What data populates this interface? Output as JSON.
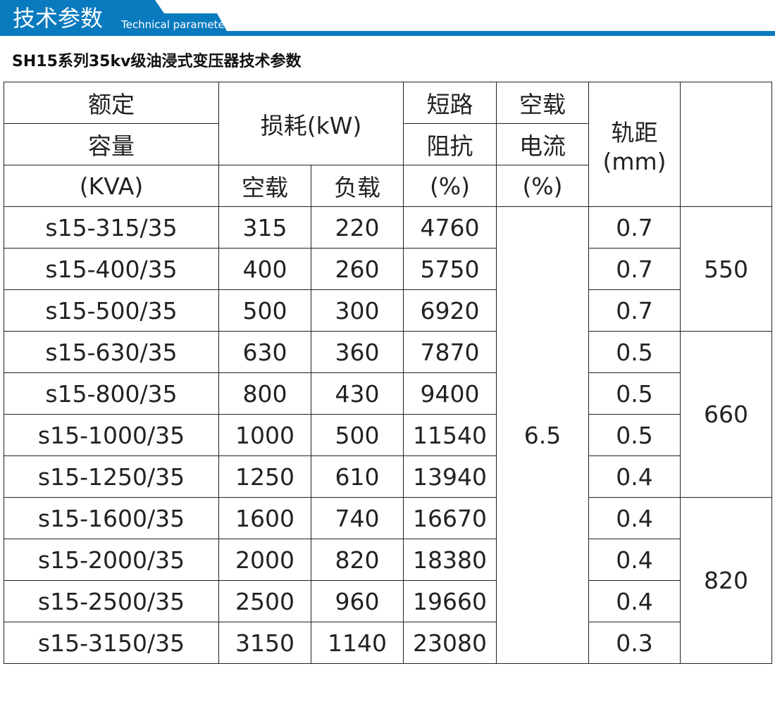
{
  "banner": {
    "title": "技术参数",
    "subtitle": "Technical parameter",
    "color": "#0a7abf"
  },
  "heading": "SH15系列35kv级油浸式变压器技术参数",
  "table": {
    "headers": {
      "capacity": [
        "额定",
        "容量",
        "(KVA)"
      ],
      "loss": "损耗(kW)",
      "loss_noload": "空载",
      "loss_load": "负载",
      "impedance": [
        "短路",
        "阻抗",
        "(%)"
      ],
      "noload_current": [
        "空载",
        "电流",
        "(%)"
      ],
      "gauge": [
        "轨距",
        "(mm)"
      ],
      "last": ""
    },
    "rows": [
      [
        "s15-315/35",
        "315",
        "220",
        "4760",
        "0.7"
      ],
      [
        "s15-400/35",
        "400",
        "260",
        "5750",
        "0.7"
      ],
      [
        "s15-500/35",
        "500",
        "300",
        "6920",
        "0.7"
      ],
      [
        "s15-630/35",
        "630",
        "360",
        "7870",
        "0.5"
      ],
      [
        "s15-800/35",
        "800",
        "430",
        "9400",
        "0.5"
      ],
      [
        "s15-1000/35",
        "1000",
        "500",
        "11540",
        "0.5"
      ],
      [
        "s15-1250/35",
        "1250",
        "610",
        "13940",
        "0.4"
      ],
      [
        "s15-1600/35",
        "1600",
        "740",
        "16670",
        "0.4"
      ],
      [
        "s15-2000/35",
        "2000",
        "820",
        "18380",
        "0.4"
      ],
      [
        "s15-2500/35",
        "2500",
        "960",
        "19660",
        "0.4"
      ],
      [
        "s15-3150/35",
        "3150",
        "1140",
        "23080",
        "0.3"
      ]
    ],
    "merged_current": "6.5",
    "groups": [
      "550",
      "660",
      "820"
    ]
  }
}
